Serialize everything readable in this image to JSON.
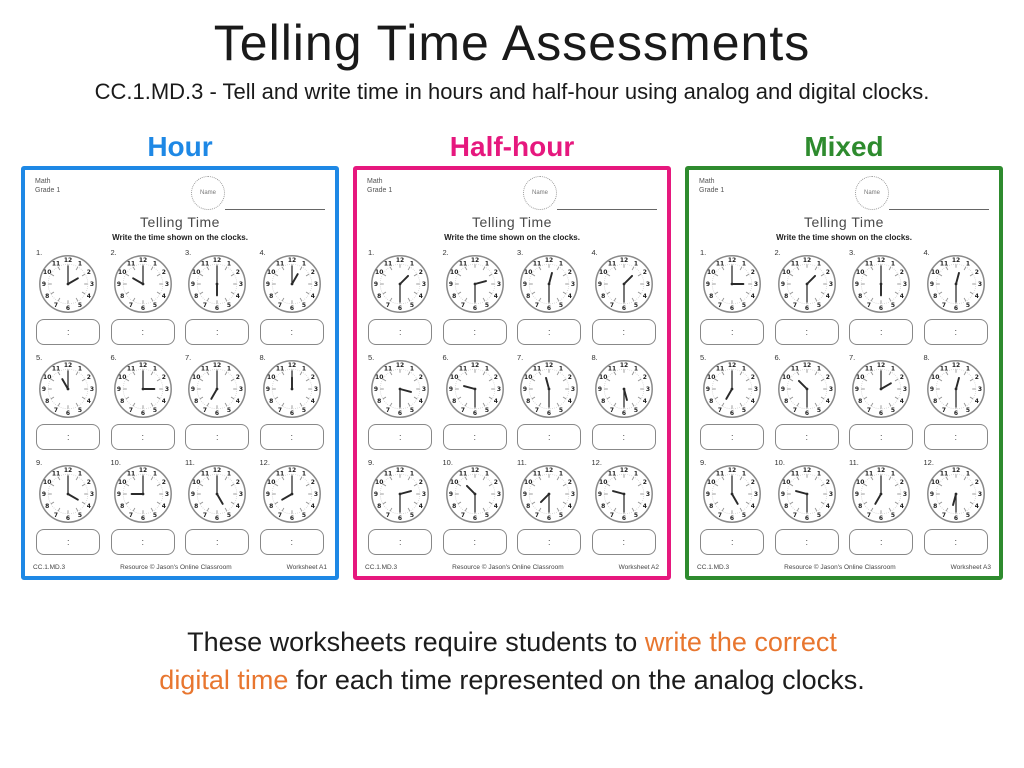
{
  "header": {
    "title": "Telling Time Assessments",
    "subtitle": "CC.1.MD.3 - Tell and write time in hours and half-hour using analog and digital clocks."
  },
  "colors": {
    "hour_blue": "#1e88e5",
    "half_hour_pink": "#e6187e",
    "mixed_green": "#2e8b2e",
    "highlight_orange": "#e8762f"
  },
  "answer_placeholder": ":",
  "worksheets": [
    {
      "label": "Hour",
      "accent": "#1e88e5",
      "subject": "Math",
      "grade": "Grade 1",
      "name_label": "Name",
      "sheet_title": "Telling Time",
      "instructions": "Write the time shown on the clocks.",
      "standard": "CC.1.MD.3",
      "resource": "Resource © Jason's Online Classroom",
      "worksheet_id": "Worksheet A1",
      "clocks": [
        "2:00",
        "10:00",
        "6:00",
        "1:00",
        "11:00",
        "3:00",
        "7:00",
        "12:00",
        "4:00",
        "9:00",
        "5:00",
        "8:00"
      ]
    },
    {
      "label": "Half-hour",
      "accent": "#e6187e",
      "subject": "Math",
      "grade": "Grade 1",
      "name_label": "Name",
      "sheet_title": "Telling Time",
      "instructions": "Write the time shown on the clocks.",
      "standard": "CC.1.MD.3",
      "resource": "Resource © Jason's Online Classroom",
      "worksheet_id": "Worksheet A2",
      "clocks": [
        "1:30",
        "2:30",
        "12:30",
        "1:30",
        "3:30",
        "9:30",
        "11:30",
        "5:30",
        "2:30",
        "10:30",
        "7:30",
        "9:30"
      ]
    },
    {
      "label": "Mixed",
      "accent": "#2e8b2e",
      "subject": "Math",
      "grade": "Grade 1",
      "name_label": "Name",
      "sheet_title": "Telling Time",
      "instructions": "Write the time shown on the clocks.",
      "standard": "CC.1.MD.3",
      "resource": "Resource © Jason's Online Classroom",
      "worksheet_id": "Worksheet A3",
      "clocks": [
        "3:00",
        "1:30",
        "6:00",
        "12:30",
        "7:00",
        "10:30",
        "2:00",
        "12:30",
        "5:00",
        "9:30",
        "7:00",
        "6:30"
      ]
    }
  ],
  "caption": {
    "line1_black": "These worksheets require students to ",
    "line1_orange": "write the correct",
    "line2_orange": "digital time",
    "line2_black": " for each time represented on the analog clocks."
  }
}
